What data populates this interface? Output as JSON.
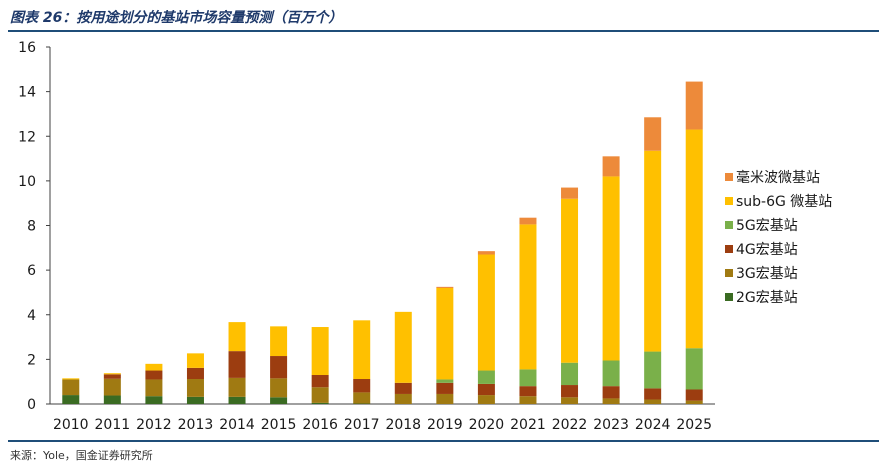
{
  "header": {
    "title": "图表 26：按用途划分的基站市场容量预测（百万个）"
  },
  "footer": {
    "source": "来源：Yole，国金证券研究所"
  },
  "chart_data": {
    "type": "bar",
    "stacked": true,
    "title": "图表 26：按用途划分的基站市场容量预测（百万个）",
    "ylim": [
      0,
      16
    ],
    "yticks": [
      0,
      2,
      4,
      6,
      8,
      10,
      12,
      14,
      16
    ],
    "grid": false,
    "legend_position": "right",
    "categories": [
      "2010",
      "2011",
      "2012",
      "2013",
      "2014",
      "2015",
      "2016",
      "2017",
      "2018",
      "2019",
      "2020",
      "2021",
      "2022",
      "2023",
      "2024",
      "2025"
    ],
    "series": [
      {
        "name": "2G宏基站",
        "color": "#3a6b22",
        "values": [
          0.4,
          0.38,
          0.35,
          0.32,
          0.32,
          0.3,
          0.05,
          0.02,
          0.0,
          0.0,
          0.0,
          0.0,
          0.0,
          0.0,
          0.0,
          0.0
        ]
      },
      {
        "name": "3G宏基站",
        "color": "#a07a12",
        "values": [
          0.7,
          0.75,
          0.75,
          0.8,
          0.85,
          0.85,
          0.7,
          0.5,
          0.45,
          0.45,
          0.4,
          0.35,
          0.3,
          0.25,
          0.2,
          0.15
        ]
      },
      {
        "name": "4G宏基站",
        "color": "#9c3d10",
        "values": [
          0.0,
          0.2,
          0.4,
          0.5,
          1.2,
          1.0,
          0.55,
          0.6,
          0.5,
          0.5,
          0.5,
          0.45,
          0.55,
          0.55,
          0.5,
          0.5
        ]
      },
      {
        "name": "5G宏基站",
        "color": "#7ab04a",
        "values": [
          0.0,
          0.0,
          0.0,
          0.0,
          0.0,
          0.0,
          0.0,
          0.0,
          0.0,
          0.15,
          0.6,
          0.75,
          1.0,
          1.15,
          1.65,
          1.85
        ]
      },
      {
        "name": "sub-6G 微基站",
        "color": "#ffc000",
        "values": [
          0.05,
          0.05,
          0.3,
          0.65,
          1.3,
          1.33,
          2.15,
          2.63,
          3.18,
          4.1,
          5.2,
          6.5,
          7.35,
          8.25,
          9.0,
          9.8
        ]
      },
      {
        "name": "毫米波微基站",
        "color": "#ed8a3a",
        "values": [
          0.0,
          0.0,
          0.0,
          0.0,
          0.0,
          0.0,
          0.0,
          0.0,
          0.0,
          0.05,
          0.15,
          0.3,
          0.5,
          0.9,
          1.5,
          2.15
        ]
      }
    ]
  }
}
